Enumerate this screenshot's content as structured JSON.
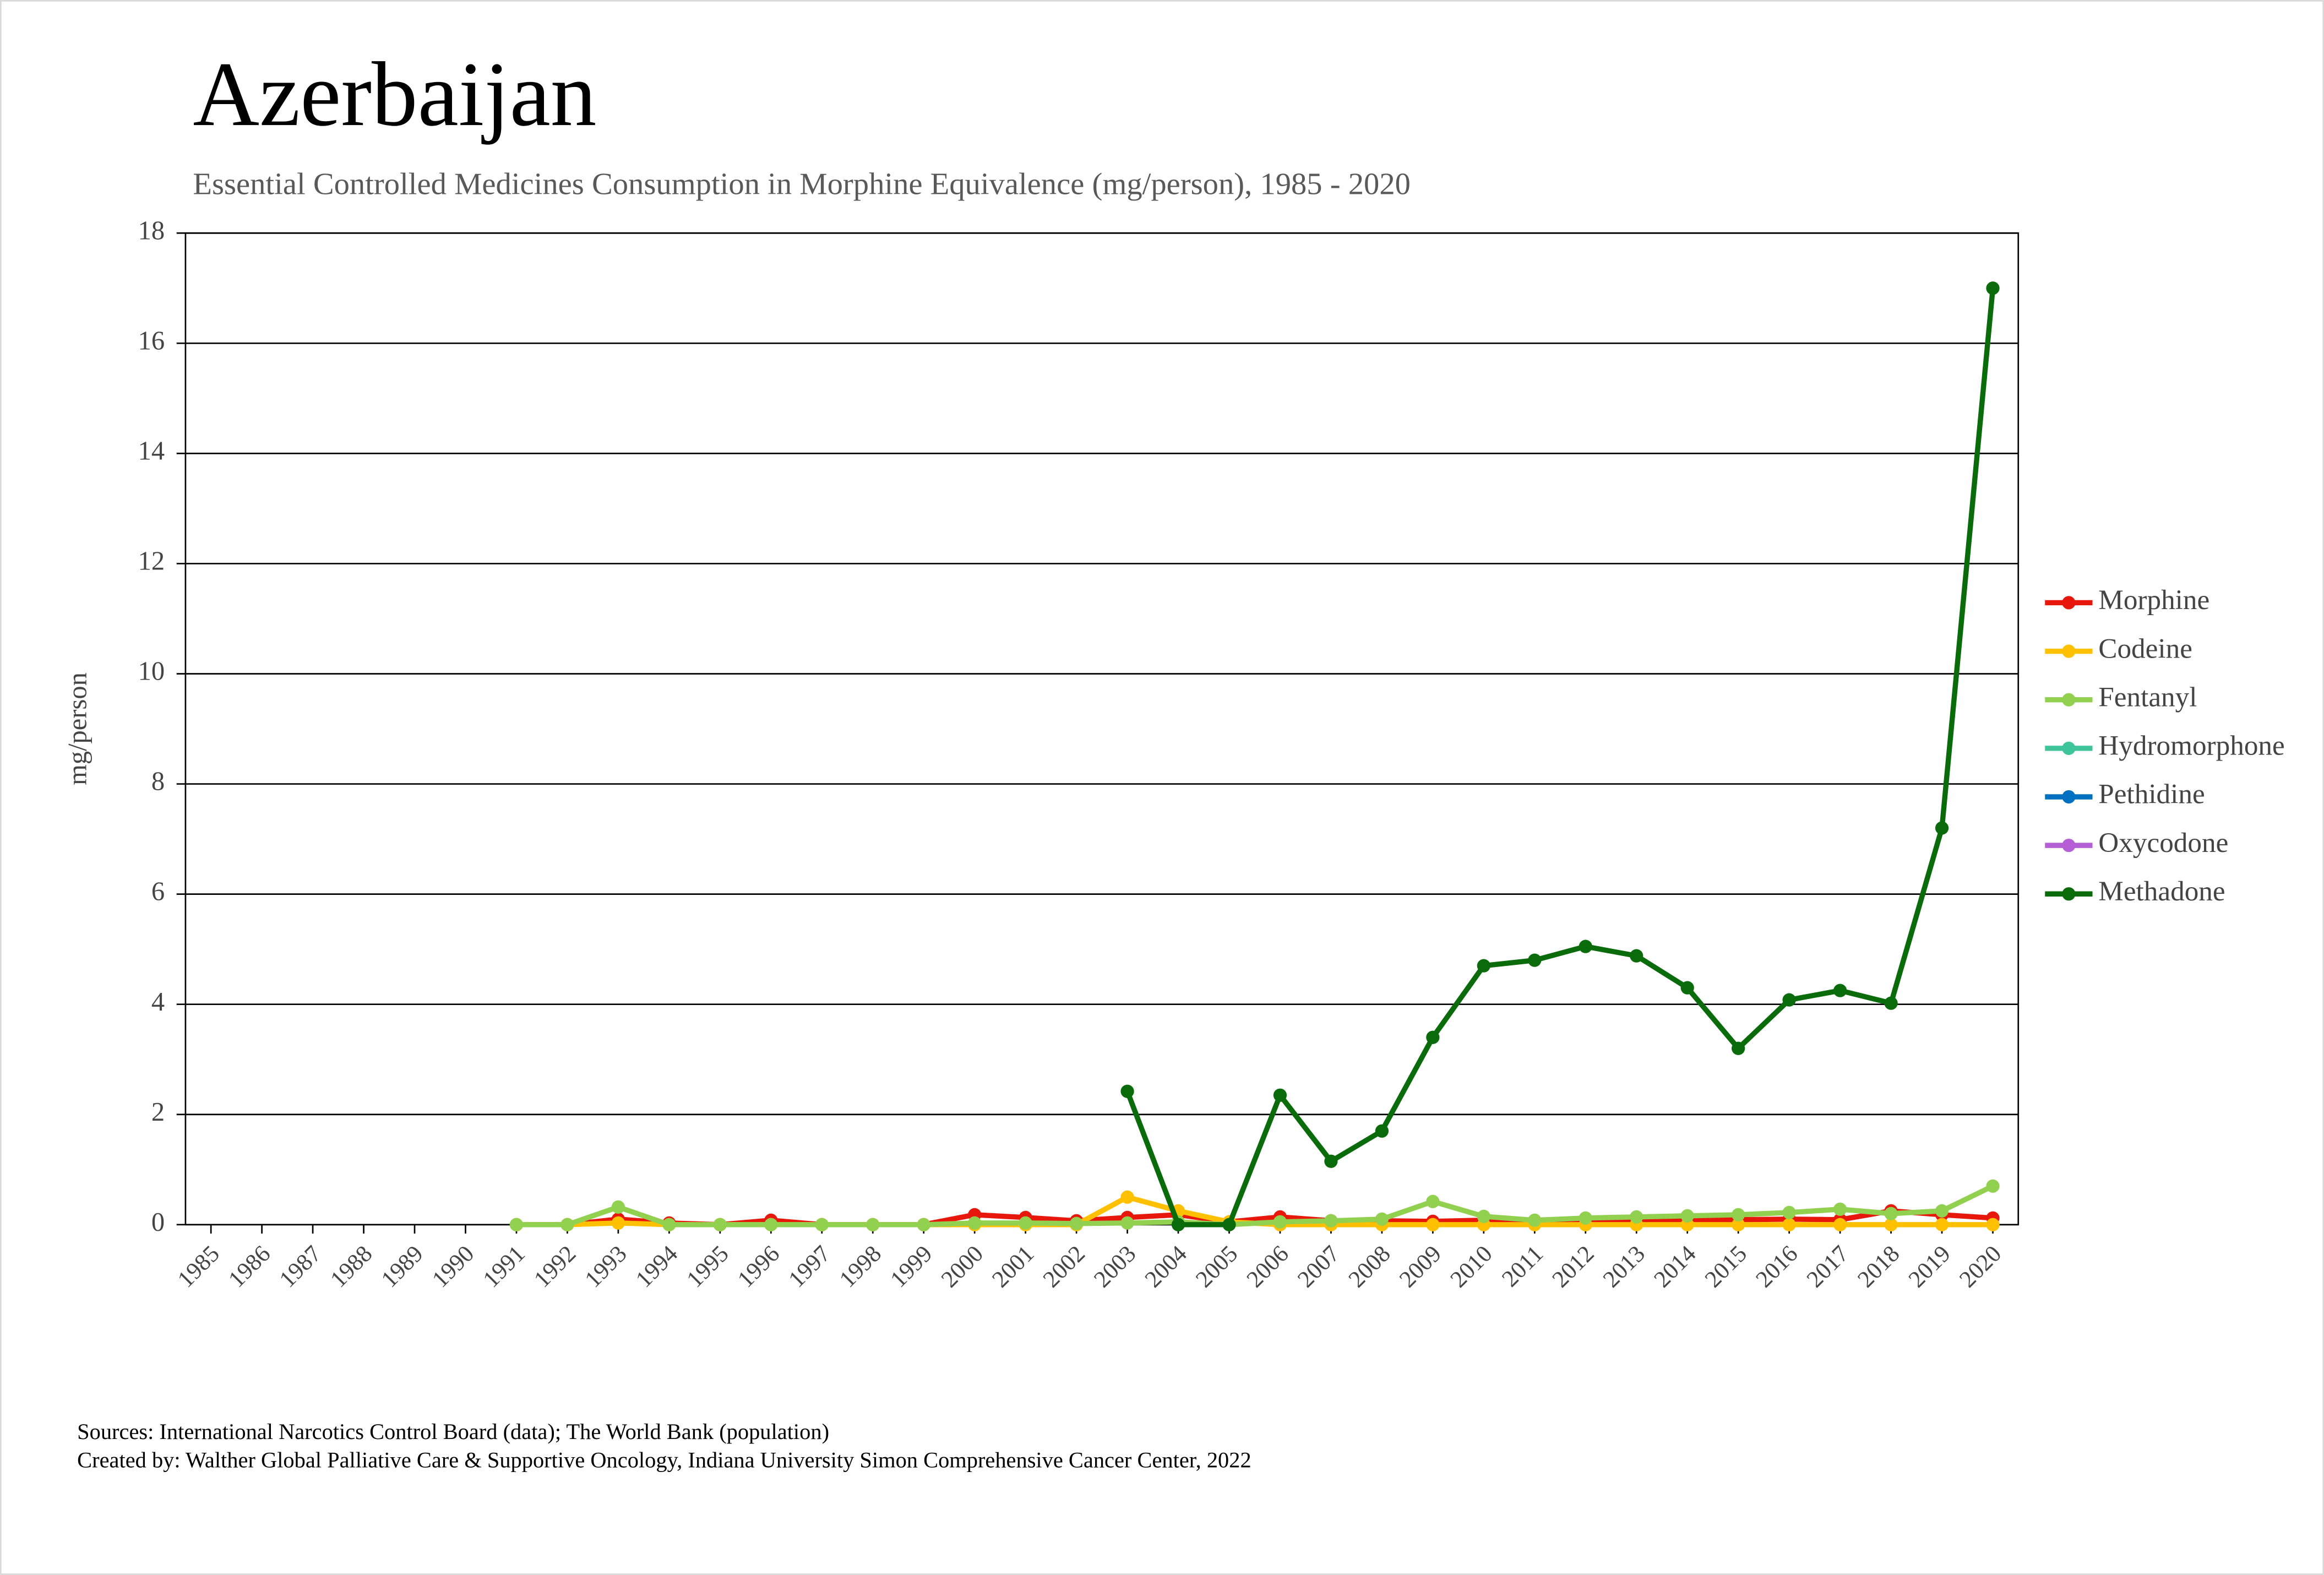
{
  "chart_data": {
    "type": "line",
    "title": "Azerbaijan",
    "subtitle": "Essential Controlled Medicines Consumption in Morphine Equivalence (mg/person), 1985 - 2020",
    "y_label": "mg/person",
    "notes": [
      "Sources: International Narcotics Control Board (data); The World Bank (population)",
      "Created by: Walther Global Palliative Care & Supportive Oncology, Indiana University Simon Comprehensive Cancer Center, 2022"
    ],
    "categories": [
      "1985",
      "1986",
      "1987",
      "1988",
      "1989",
      "1990",
      "1991",
      "1992",
      "1993",
      "1994",
      "1995",
      "1996",
      "1997",
      "1998",
      "1999",
      "2000",
      "2001",
      "2002",
      "2003",
      "2004",
      "2005",
      "2006",
      "2007",
      "2008",
      "2009",
      "2010",
      "2011",
      "2012",
      "2013",
      "2014",
      "2015",
      "2016",
      "2017",
      "2018",
      "2019",
      "2020"
    ],
    "ylim": [
      0,
      18
    ],
    "yticks": [
      0,
      2,
      4,
      6,
      8,
      10,
      12,
      14,
      16,
      18
    ],
    "grid": true,
    "legend": "right",
    "series": [
      {
        "name": "Morphine",
        "color": "#e8170c",
        "values": [
          null,
          null,
          null,
          null,
          null,
          null,
          0,
          0,
          0.1,
          0.03,
          0,
          0.08,
          0,
          0,
          0,
          0.18,
          0.13,
          0.07,
          0.13,
          0.18,
          0.05,
          0.14,
          0.07,
          0.07,
          0.06,
          0.08,
          0.06,
          0.07,
          0.07,
          0.08,
          0.09,
          0.1,
          0.09,
          0.25,
          0.18,
          0.12
        ]
      },
      {
        "name": "Codeine",
        "color": "#ffc000",
        "values": [
          null,
          null,
          null,
          null,
          null,
          null,
          0,
          0,
          0.03,
          0,
          0,
          0,
          0,
          0,
          0,
          0,
          0,
          0,
          0.5,
          0.25,
          0.05,
          0,
          0,
          0,
          0,
          0,
          0,
          0,
          0,
          0,
          0,
          0,
          0,
          0,
          0,
          0
        ]
      },
      {
        "name": "Fentanyl",
        "color": "#92d050",
        "values": [
          null,
          null,
          null,
          null,
          null,
          null,
          0,
          0,
          0.32,
          0,
          0,
          0,
          0,
          0,
          0,
          0.03,
          0.03,
          0.02,
          0.03,
          0.05,
          0,
          0.05,
          0.07,
          0.1,
          0.42,
          0.15,
          0.08,
          0.12,
          0.14,
          0.16,
          0.18,
          0.22,
          0.28,
          0.2,
          0.25,
          0.7
        ]
      },
      {
        "name": "Hydromorphone",
        "color": "#3fc49a",
        "values": [
          null,
          null,
          null,
          null,
          null,
          null,
          null,
          null,
          null,
          null,
          null,
          null,
          null,
          null,
          null,
          null,
          null,
          null,
          null,
          null,
          null,
          null,
          null,
          null,
          null,
          null,
          null,
          null,
          null,
          null,
          null,
          null,
          null,
          null,
          null,
          null
        ]
      },
      {
        "name": "Pethidine",
        "color": "#0070c0",
        "values": [
          null,
          null,
          null,
          null,
          null,
          null,
          null,
          null,
          null,
          null,
          null,
          null,
          null,
          null,
          null,
          null,
          null,
          null,
          null,
          null,
          null,
          null,
          null,
          null,
          null,
          null,
          null,
          null,
          null,
          null,
          null,
          null,
          null,
          null,
          null,
          null
        ]
      },
      {
        "name": "Oxycodone",
        "color": "#b45fd6",
        "values": [
          null,
          null,
          null,
          null,
          null,
          null,
          null,
          null,
          null,
          null,
          null,
          null,
          null,
          null,
          null,
          null,
          null,
          null,
          null,
          null,
          null,
          null,
          null,
          null,
          null,
          null,
          null,
          null,
          null,
          null,
          null,
          null,
          null,
          null,
          null,
          null
        ]
      },
      {
        "name": "Methadone",
        "color": "#0a6b0a",
        "values": [
          null,
          null,
          null,
          null,
          null,
          null,
          null,
          null,
          null,
          null,
          null,
          null,
          null,
          null,
          null,
          null,
          null,
          null,
          2.42,
          0,
          0,
          2.35,
          1.15,
          1.7,
          3.4,
          4.7,
          4.8,
          5.05,
          4.88,
          4.3,
          3.2,
          4.08,
          4.25,
          4.02,
          7.2,
          17
        ]
      }
    ]
  }
}
